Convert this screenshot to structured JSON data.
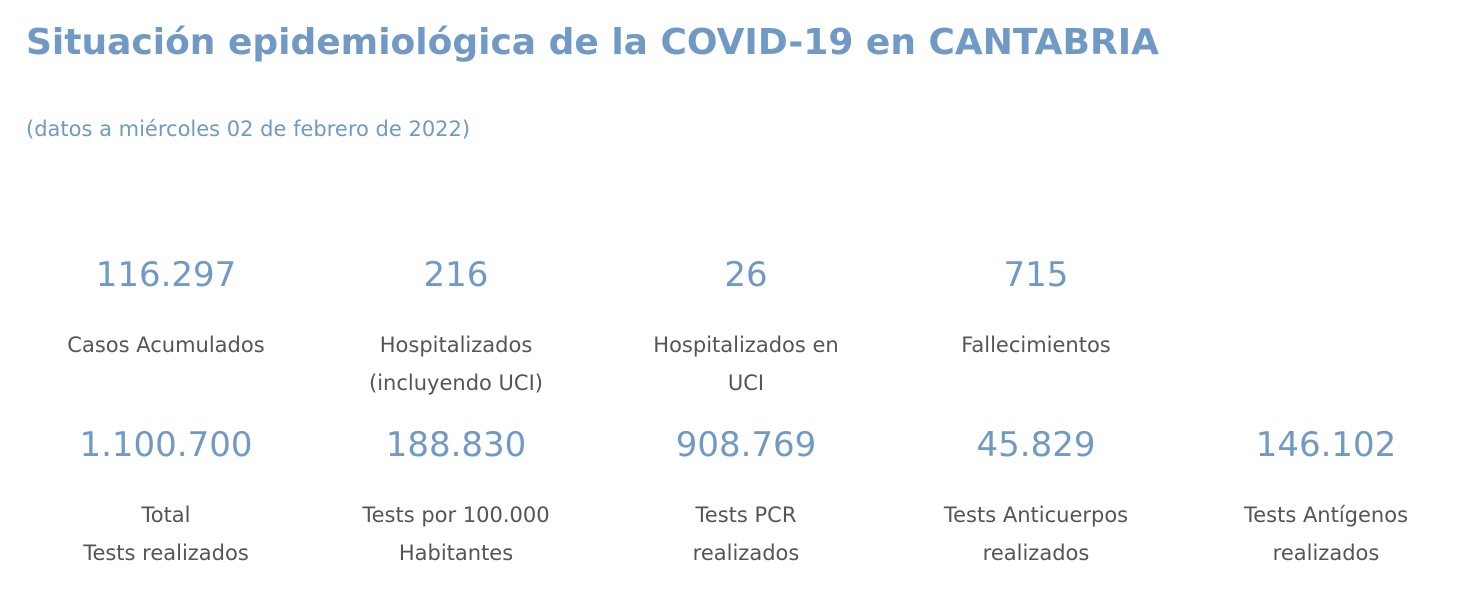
{
  "header": {
    "title": "Situación epidemiológica de la COVID-19 en CANTABRIA",
    "subtitle": "(datos a miércoles 02 de febrero de 2022)"
  },
  "stats": {
    "row1": [
      {
        "value": "116.297",
        "label": "Casos Acumulados"
      },
      {
        "value": "216",
        "label": "Hospitalizados\n(incluyendo UCI)"
      },
      {
        "value": "26",
        "label": "Hospitalizados en\nUCI"
      },
      {
        "value": "715",
        "label": "Fallecimientos"
      }
    ],
    "row2": [
      {
        "value": "1.100.700",
        "label": "Total\nTests realizados"
      },
      {
        "value": "188.830",
        "label": "Tests por 100.000\nHabitantes"
      },
      {
        "value": "908.769",
        "label": "Tests PCR\nrealizados"
      },
      {
        "value": "45.829",
        "label": "Tests Anticuerpos\nrealizados"
      },
      {
        "value": "146.102",
        "label": "Tests Antígenos\nrealizados"
      }
    ]
  },
  "colors": {
    "accent": "#7199c6",
    "label_text": "#555555",
    "background": "#ffffff"
  }
}
